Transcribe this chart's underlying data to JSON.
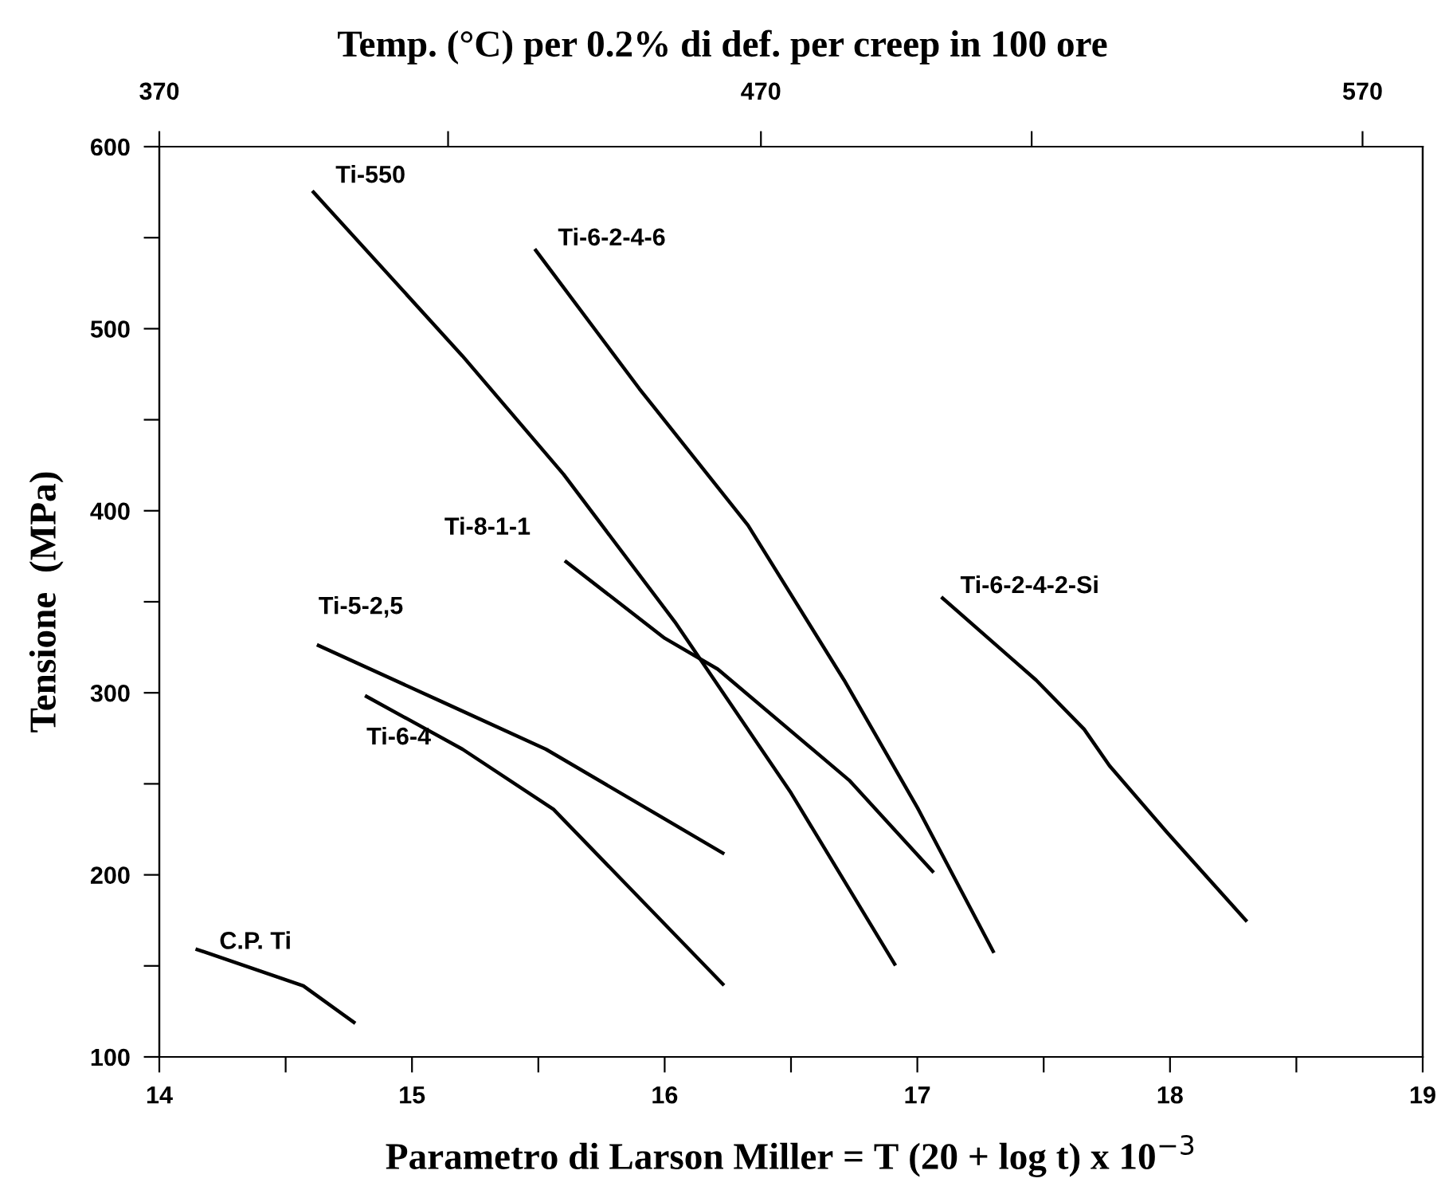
{
  "chart_data": {
    "type": "line",
    "title": "Temp. (°C) per 0.2% di def. per creep in 100 ore",
    "xlabel": "Parametro di Larson Miller = T (20 + log t) x 10$^{−3}$",
    "ylabel": "Tensione  (MPa)",
    "xlim": [
      14,
      19
    ],
    "ylim": [
      100,
      600
    ],
    "xticks": [
      14,
      {
        "value": 14.5,
        "label": null
      },
      15,
      {
        "value": 15.5,
        "label": null
      },
      16,
      {
        "value": 16.5,
        "label": null
      },
      17,
      {
        "value": 17.5,
        "label": null
      },
      18,
      {
        "value": 18.5,
        "label": null
      },
      19
    ],
    "yticks": [
      100,
      {
        "value": 150,
        "label": null
      },
      200,
      {
        "value": 250,
        "label": null
      },
      300,
      {
        "value": 350,
        "label": null
      },
      400,
      {
        "value": 450,
        "label": null
      },
      500,
      {
        "value": 550,
        "label": null
      },
      600
    ],
    "x2lim": [
      370,
      580
    ],
    "x2ticks": [
      370,
      {
        "value": 418,
        "label": null
      },
      470,
      {
        "value": 515,
        "label": null
      },
      570
    ],
    "grid": false,
    "legend": false,
    "marker": "none",
    "line_style": "solid",
    "series": [
      {
        "name": "Ti-550",
        "color": "#000000",
        "x": [
          14.61,
          15.2,
          15.6,
          16.04,
          16.5,
          16.91
        ],
        "values": [
          575,
          485,
          420,
          339,
          245,
          151
        ]
      },
      {
        "name": "Ti-6-2-4-6",
        "color": "#000000",
        "x": [
          15.49,
          15.9,
          16.33,
          16.71,
          17.0,
          17.3
        ],
        "values": [
          543,
          467,
          392,
          307,
          237,
          158
        ]
      },
      {
        "name": "Ti-8-1-1",
        "color": "#000000",
        "x": [
          15.61,
          16.0,
          16.21,
          16.73,
          17.06
        ],
        "values": [
          372,
          330,
          313,
          252,
          202
        ]
      },
      {
        "name": "Ti-5-2,5",
        "color": "#000000",
        "x": [
          14.63,
          15.12,
          15.53,
          16.23
        ],
        "values": [
          326,
          295,
          269,
          212
        ]
      },
      {
        "name": "Ti-6-4",
        "color": "#000000",
        "x": [
          14.82,
          15.2,
          15.56,
          16.23
        ],
        "values": [
          298,
          269,
          236,
          140
        ]
      },
      {
        "name": "C.P. Ti",
        "color": "#000000",
        "x": [
          14.15,
          14.57,
          14.77
        ],
        "values": [
          159,
          139,
          119
        ]
      },
      {
        "name": "Ti-6-2-4-2-Si",
        "color": "#000000",
        "x": [
          17.1,
          17.47,
          17.66,
          17.76,
          17.99,
          18.3
        ],
        "values": [
          352,
          307,
          280,
          260,
          223,
          175
        ]
      }
    ]
  }
}
